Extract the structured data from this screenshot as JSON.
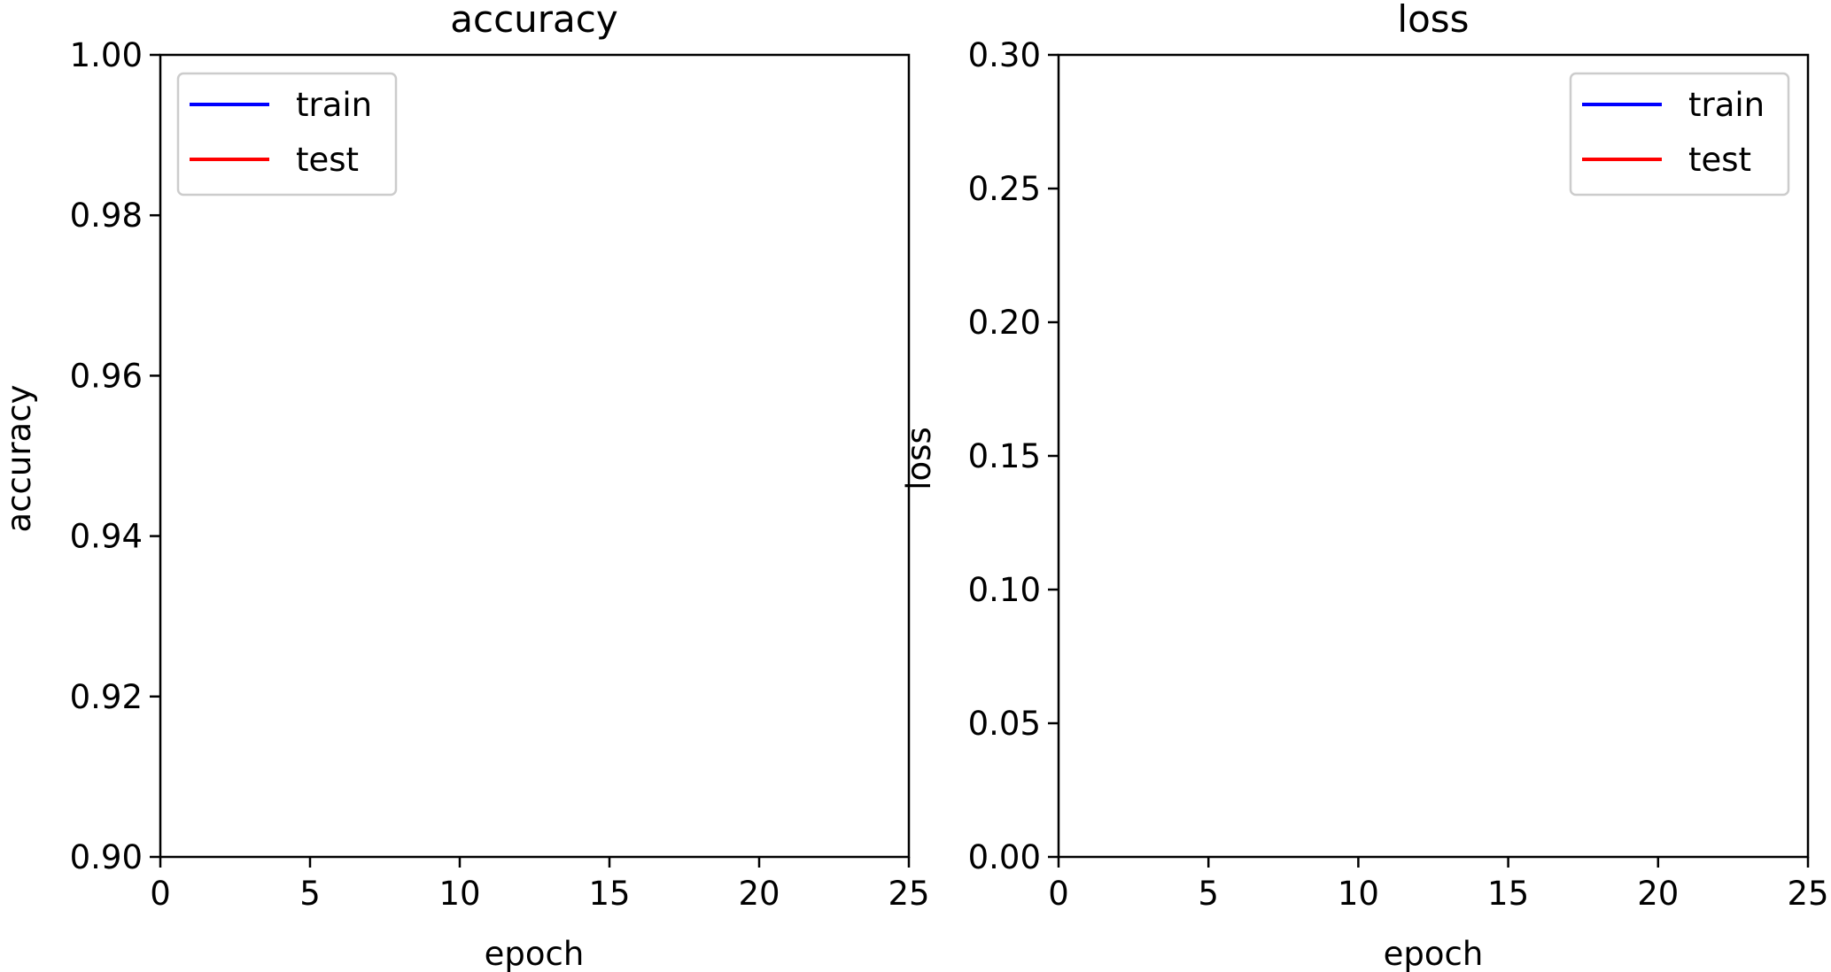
{
  "chart_data": [
    {
      "type": "line",
      "title": "accuracy",
      "xlabel": "epoch",
      "ylabel": "accuracy",
      "xlim": [
        0,
        25
      ],
      "ylim": [
        0.9,
        1.0
      ],
      "x_ticks": [
        "0",
        "5",
        "10",
        "15",
        "20",
        "25"
      ],
      "y_ticks": [
        "0.90",
        "0.92",
        "0.94",
        "0.96",
        "0.98",
        "1.00"
      ],
      "grid": false,
      "legend_position": "upper left",
      "series": [
        {
          "name": "train",
          "color": "#0000ff",
          "x": [],
          "y": []
        },
        {
          "name": "test",
          "color": "#ff0000",
          "x": [],
          "y": []
        }
      ]
    },
    {
      "type": "line",
      "title": "loss",
      "xlabel": "epoch",
      "ylabel": "loss",
      "xlim": [
        0,
        25
      ],
      "ylim": [
        0.0,
        0.3
      ],
      "x_ticks": [
        "0",
        "5",
        "10",
        "15",
        "20",
        "25"
      ],
      "y_ticks": [
        "0.00",
        "0.05",
        "0.10",
        "0.15",
        "0.20",
        "0.25",
        "0.30"
      ],
      "grid": false,
      "legend_position": "upper right",
      "series": [
        {
          "name": "train",
          "color": "#0000ff",
          "x": [],
          "y": []
        },
        {
          "name": "test",
          "color": "#ff0000",
          "x": [],
          "y": []
        }
      ]
    }
  ]
}
